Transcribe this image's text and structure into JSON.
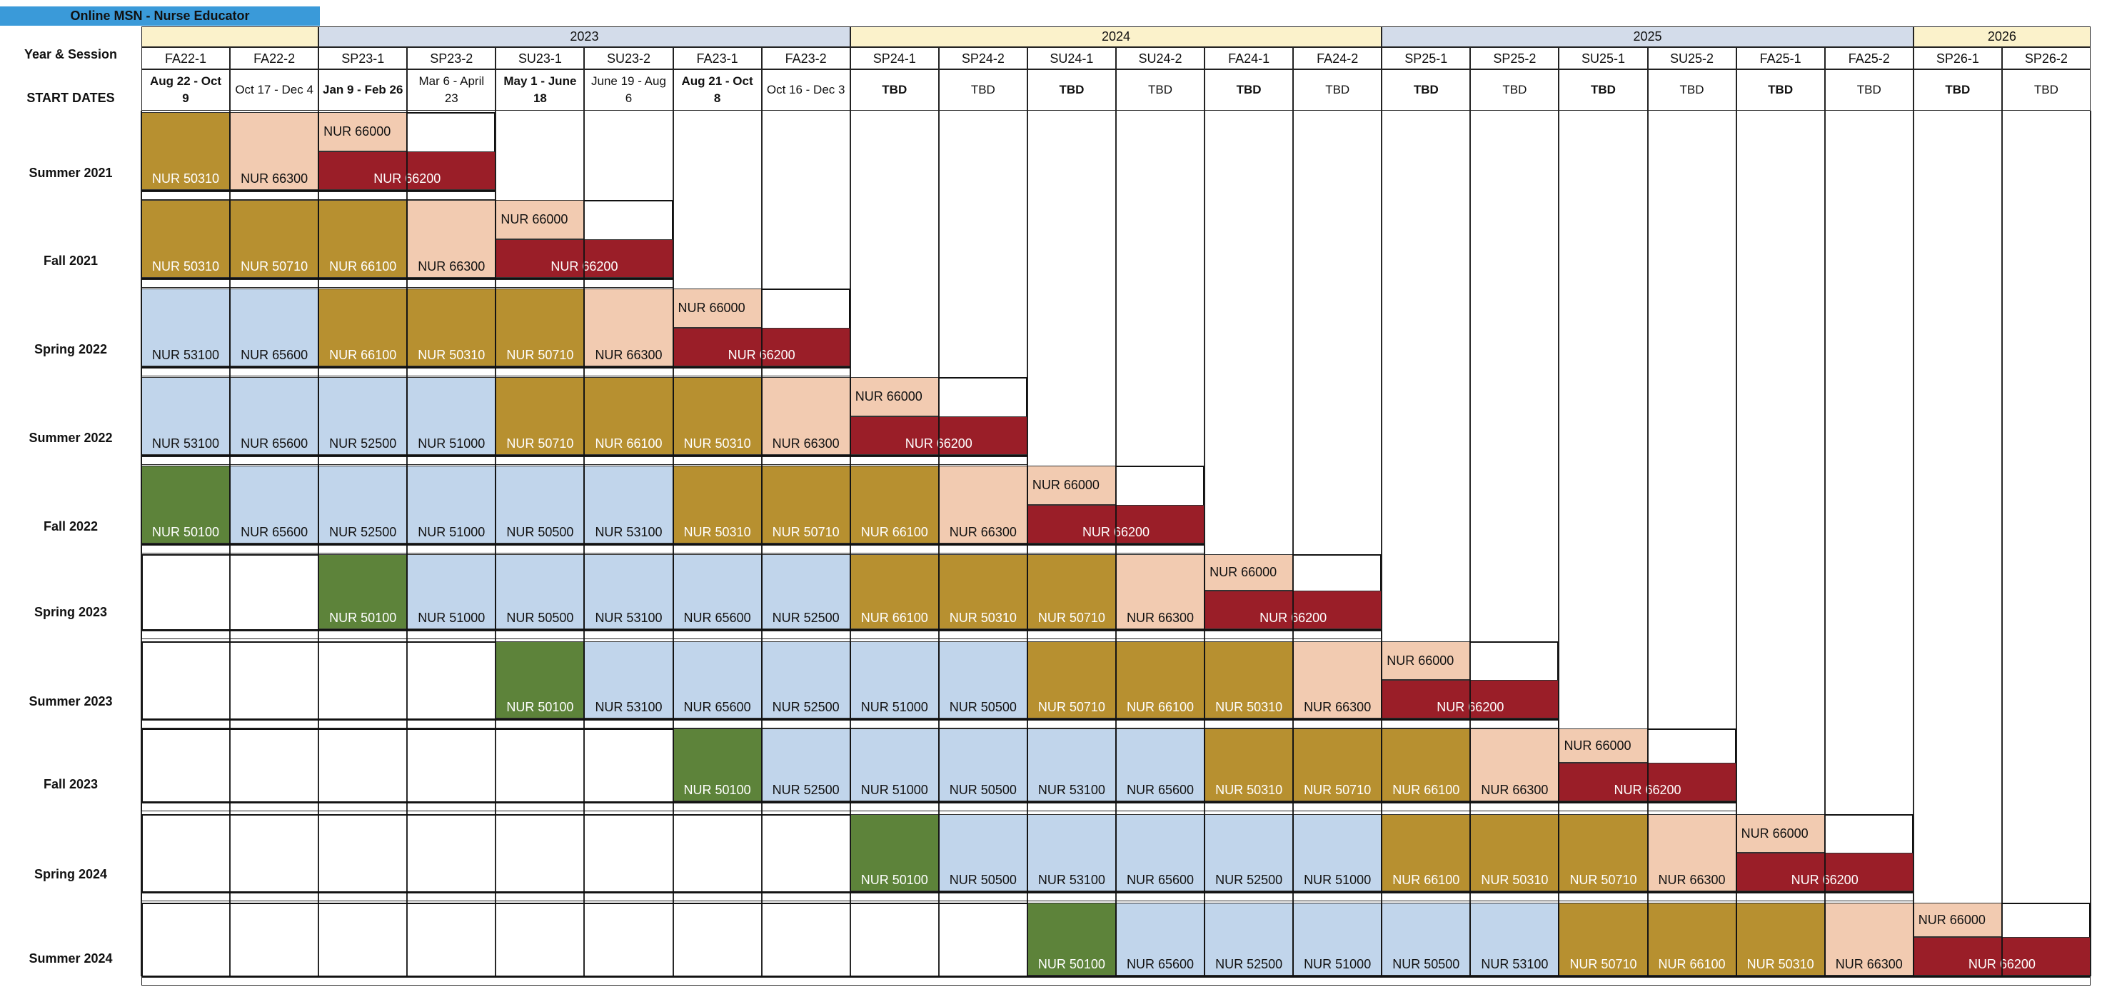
{
  "title": "Online MSN - Nurse Educator",
  "header": {
    "year_session_label": "Year & Session",
    "start_dates_label": "START DATES",
    "years": [
      {
        "label": "2023",
        "color": "#d3dcea"
      },
      {
        "label": "2024",
        "color": "#fbf2cb"
      },
      {
        "label": "2025",
        "color": "#d3dcea"
      },
      {
        "label": "2026",
        "color": "#fbf2cb"
      }
    ],
    "sessions": [
      "FA22-1",
      "FA22-2",
      "SP23-1",
      "SP23-2",
      "SU23-1",
      "SU23-2",
      "FA23-1",
      "FA23-2",
      "SP24-1",
      "SP24-2",
      "SU24-1",
      "SU24-2",
      "FA24-1",
      "FA24-2",
      "SP25-1",
      "SP25-2",
      "SU25-1",
      "SU25-2",
      "FA25-1",
      "FA25-2",
      "SP26-1",
      "SP26-2"
    ],
    "start_dates": [
      "Aug 22 - Oct 9",
      "Oct 17 -  Dec 4",
      "Jan 9 -       Feb 26",
      "Mar 6 -     April 23",
      "May 1 - June 18",
      "June 19 - Aug 6",
      "Aug 21 -     Oct 8",
      "Oct 16 - Dec 3",
      "TBD",
      "TBD",
      "TBD",
      "TBD",
      "TBD",
      "TBD",
      "TBD",
      "TBD",
      "TBD",
      "TBD",
      "TBD",
      "TBD",
      "TBD",
      "TBD"
    ]
  },
  "colors": {
    "intro": "#5d833a",
    "core": "#c1d5eb",
    "mid": "#b79030",
    "elective": "#f2cbb1",
    "capstone": "#9a1e28",
    "practicum": "#f2cbb1",
    "grid": "#222222"
  },
  "legend_roles": [
    "intro",
    "core",
    "mid",
    "elective",
    "capstone",
    "practicum"
  ],
  "cohorts": [
    {
      "label": "Summer 2021",
      "courses": [
        {
          "code": "NUR 50310",
          "start": 0,
          "span": 1,
          "kind": "mid"
        },
        {
          "code": "NUR 66300",
          "start": 1,
          "span": 1,
          "kind": "elective"
        },
        {
          "code": "NUR 66200",
          "start": 2,
          "span": 2,
          "kind": "capstone"
        },
        {
          "code": "NUR 66000",
          "start": 2,
          "span": 1,
          "kind": "practicum"
        }
      ]
    },
    {
      "label": "Fall 2021",
      "courses": [
        {
          "code": "NUR 50310",
          "start": 0,
          "span": 1,
          "kind": "mid"
        },
        {
          "code": "NUR 50710",
          "start": 1,
          "span": 1,
          "kind": "mid"
        },
        {
          "code": "NUR 66100",
          "start": 2,
          "span": 1,
          "kind": "mid"
        },
        {
          "code": "NUR 66300",
          "start": 3,
          "span": 1,
          "kind": "elective"
        },
        {
          "code": "NUR 66200",
          "start": 4,
          "span": 2,
          "kind": "capstone"
        },
        {
          "code": "NUR 66000",
          "start": 4,
          "span": 1,
          "kind": "practicum"
        }
      ]
    },
    {
      "label": "Spring 2022",
      "courses": [
        {
          "code": "NUR 53100",
          "start": 0,
          "span": 1,
          "kind": "core"
        },
        {
          "code": "NUR 65600",
          "start": 1,
          "span": 1,
          "kind": "core"
        },
        {
          "code": "NUR 66100",
          "start": 2,
          "span": 1,
          "kind": "mid"
        },
        {
          "code": "NUR 50310",
          "start": 3,
          "span": 1,
          "kind": "mid"
        },
        {
          "code": "NUR 50710",
          "start": 4,
          "span": 1,
          "kind": "mid"
        },
        {
          "code": "NUR 66300",
          "start": 5,
          "span": 1,
          "kind": "elective"
        },
        {
          "code": "NUR 66200",
          "start": 6,
          "span": 2,
          "kind": "capstone"
        },
        {
          "code": "NUR 66000",
          "start": 6,
          "span": 1,
          "kind": "practicum"
        }
      ]
    },
    {
      "label": "Summer 2022",
      "courses": [
        {
          "code": "NUR 53100",
          "start": 0,
          "span": 1,
          "kind": "core"
        },
        {
          "code": "NUR 65600",
          "start": 1,
          "span": 1,
          "kind": "core"
        },
        {
          "code": "NUR 52500",
          "start": 2,
          "span": 1,
          "kind": "core"
        },
        {
          "code": "NUR 51000",
          "start": 3,
          "span": 1,
          "kind": "core"
        },
        {
          "code": "NUR 50710",
          "start": 4,
          "span": 1,
          "kind": "mid"
        },
        {
          "code": "NUR 66100",
          "start": 5,
          "span": 1,
          "kind": "mid"
        },
        {
          "code": "NUR 50310",
          "start": 6,
          "span": 1,
          "kind": "mid"
        },
        {
          "code": "NUR 66300",
          "start": 7,
          "span": 1,
          "kind": "elective"
        },
        {
          "code": "NUR 66200",
          "start": 8,
          "span": 2,
          "kind": "capstone"
        },
        {
          "code": "NUR 66000",
          "start": 8,
          "span": 1,
          "kind": "practicum"
        }
      ]
    },
    {
      "label": "Fall 2022",
      "courses": [
        {
          "code": "NUR 50100",
          "start": 0,
          "span": 1,
          "kind": "intro"
        },
        {
          "code": "NUR 65600",
          "start": 1,
          "span": 1,
          "kind": "core"
        },
        {
          "code": "NUR 52500",
          "start": 2,
          "span": 1,
          "kind": "core"
        },
        {
          "code": "NUR 51000",
          "start": 3,
          "span": 1,
          "kind": "core"
        },
        {
          "code": "NUR 50500",
          "start": 4,
          "span": 1,
          "kind": "core"
        },
        {
          "code": "NUR 53100",
          "start": 5,
          "span": 1,
          "kind": "core"
        },
        {
          "code": "NUR 50310",
          "start": 6,
          "span": 1,
          "kind": "mid"
        },
        {
          "code": "NUR 50710",
          "start": 7,
          "span": 1,
          "kind": "mid"
        },
        {
          "code": "NUR 66100",
          "start": 8,
          "span": 1,
          "kind": "mid"
        },
        {
          "code": "NUR 66300",
          "start": 9,
          "span": 1,
          "kind": "elective"
        },
        {
          "code": "NUR 66200",
          "start": 10,
          "span": 2,
          "kind": "capstone"
        },
        {
          "code": "NUR 66000",
          "start": 10,
          "span": 1,
          "kind": "practicum"
        }
      ]
    },
    {
      "label": "Spring 2023",
      "courses": [
        {
          "code": "NUR 50100",
          "start": 2,
          "span": 1,
          "kind": "intro"
        },
        {
          "code": "NUR 51000",
          "start": 3,
          "span": 1,
          "kind": "core"
        },
        {
          "code": "NUR 50500",
          "start": 4,
          "span": 1,
          "kind": "core"
        },
        {
          "code": "NUR 53100",
          "start": 5,
          "span": 1,
          "kind": "core"
        },
        {
          "code": "NUR 65600",
          "start": 6,
          "span": 1,
          "kind": "core"
        },
        {
          "code": "NUR 52500",
          "start": 7,
          "span": 1,
          "kind": "core"
        },
        {
          "code": "NUR 66100",
          "start": 8,
          "span": 1,
          "kind": "mid"
        },
        {
          "code": "NUR 50310",
          "start": 9,
          "span": 1,
          "kind": "mid"
        },
        {
          "code": "NUR 50710",
          "start": 10,
          "span": 1,
          "kind": "mid"
        },
        {
          "code": "NUR 66300",
          "start": 11,
          "span": 1,
          "kind": "elective"
        },
        {
          "code": "NUR 66200",
          "start": 12,
          "span": 2,
          "kind": "capstone"
        },
        {
          "code": "NUR 66000",
          "start": 12,
          "span": 1,
          "kind": "practicum"
        }
      ]
    },
    {
      "label": "Summer 2023",
      "courses": [
        {
          "code": "NUR 50100",
          "start": 4,
          "span": 1,
          "kind": "intro"
        },
        {
          "code": "NUR 53100",
          "start": 5,
          "span": 1,
          "kind": "core"
        },
        {
          "code": "NUR 65600",
          "start": 6,
          "span": 1,
          "kind": "core"
        },
        {
          "code": "NUR 52500",
          "start": 7,
          "span": 1,
          "kind": "core"
        },
        {
          "code": "NUR 51000",
          "start": 8,
          "span": 1,
          "kind": "core"
        },
        {
          "code": "NUR 50500",
          "start": 9,
          "span": 1,
          "kind": "core"
        },
        {
          "code": "NUR 50710",
          "start": 10,
          "span": 1,
          "kind": "mid"
        },
        {
          "code": "NUR 66100",
          "start": 11,
          "span": 1,
          "kind": "mid"
        },
        {
          "code": "NUR 50310",
          "start": 12,
          "span": 1,
          "kind": "mid"
        },
        {
          "code": "NUR 66300",
          "start": 13,
          "span": 1,
          "kind": "elective"
        },
        {
          "code": "NUR 66200",
          "start": 14,
          "span": 2,
          "kind": "capstone"
        },
        {
          "code": "NUR 66000",
          "start": 14,
          "span": 1,
          "kind": "practicum"
        }
      ]
    },
    {
      "label": "Fall 2023",
      "courses": [
        {
          "code": "NUR 50100",
          "start": 6,
          "span": 1,
          "kind": "intro"
        },
        {
          "code": "NUR 52500",
          "start": 7,
          "span": 1,
          "kind": "core"
        },
        {
          "code": "NUR 51000",
          "start": 8,
          "span": 1,
          "kind": "core"
        },
        {
          "code": "NUR 50500",
          "start": 9,
          "span": 1,
          "kind": "core"
        },
        {
          "code": "NUR 53100",
          "start": 10,
          "span": 1,
          "kind": "core"
        },
        {
          "code": "NUR 65600",
          "start": 11,
          "span": 1,
          "kind": "core"
        },
        {
          "code": "NUR 50310",
          "start": 12,
          "span": 1,
          "kind": "mid"
        },
        {
          "code": "NUR 50710",
          "start": 13,
          "span": 1,
          "kind": "mid"
        },
        {
          "code": "NUR 66100",
          "start": 14,
          "span": 1,
          "kind": "mid"
        },
        {
          "code": "NUR 66300",
          "start": 15,
          "span": 1,
          "kind": "elective"
        },
        {
          "code": "NUR 66200",
          "start": 16,
          "span": 2,
          "kind": "capstone"
        },
        {
          "code": "NUR 66000",
          "start": 16,
          "span": 1,
          "kind": "practicum"
        }
      ]
    },
    {
      "label": "Spring 2024",
      "courses": [
        {
          "code": "NUR 50100",
          "start": 8,
          "span": 1,
          "kind": "intro"
        },
        {
          "code": "NUR 50500",
          "start": 9,
          "span": 1,
          "kind": "core"
        },
        {
          "code": "NUR 53100",
          "start": 10,
          "span": 1,
          "kind": "core"
        },
        {
          "code": "NUR 65600",
          "start": 11,
          "span": 1,
          "kind": "core"
        },
        {
          "code": "NUR 52500",
          "start": 12,
          "span": 1,
          "kind": "core"
        },
        {
          "code": "NUR 51000",
          "start": 13,
          "span": 1,
          "kind": "core"
        },
        {
          "code": "NUR 66100",
          "start": 14,
          "span": 1,
          "kind": "mid"
        },
        {
          "code": "NUR 50310",
          "start": 15,
          "span": 1,
          "kind": "mid"
        },
        {
          "code": "NUR 50710",
          "start": 16,
          "span": 1,
          "kind": "mid"
        },
        {
          "code": "NUR 66300",
          "start": 17,
          "span": 1,
          "kind": "elective"
        },
        {
          "code": "NUR 66200",
          "start": 18,
          "span": 2,
          "kind": "capstone"
        },
        {
          "code": "NUR 66000",
          "start": 18,
          "span": 1,
          "kind": "practicum"
        }
      ]
    },
    {
      "label": "Summer 2024",
      "courses": [
        {
          "code": "NUR 50100",
          "start": 10,
          "span": 1,
          "kind": "intro"
        },
        {
          "code": "NUR 65600",
          "start": 11,
          "span": 1,
          "kind": "core"
        },
        {
          "code": "NUR 52500",
          "start": 12,
          "span": 1,
          "kind": "core"
        },
        {
          "code": "NUR 51000",
          "start": 13,
          "span": 1,
          "kind": "core"
        },
        {
          "code": "NUR 50500",
          "start": 14,
          "span": 1,
          "kind": "core"
        },
        {
          "code": "NUR 53100",
          "start": 15,
          "span": 1,
          "kind": "core"
        },
        {
          "code": "NUR 50710",
          "start": 16,
          "span": 1,
          "kind": "mid"
        },
        {
          "code": "NUR 66100",
          "start": 17,
          "span": 1,
          "kind": "mid"
        },
        {
          "code": "NUR 50310",
          "start": 18,
          "span": 1,
          "kind": "mid"
        },
        {
          "code": "NUR 66300",
          "start": 19,
          "span": 1,
          "kind": "elective"
        },
        {
          "code": "NUR 66200",
          "start": 20,
          "span": 2,
          "kind": "capstone"
        },
        {
          "code": "NUR 66000",
          "start": 20,
          "span": 1,
          "kind": "practicum"
        }
      ]
    }
  ]
}
